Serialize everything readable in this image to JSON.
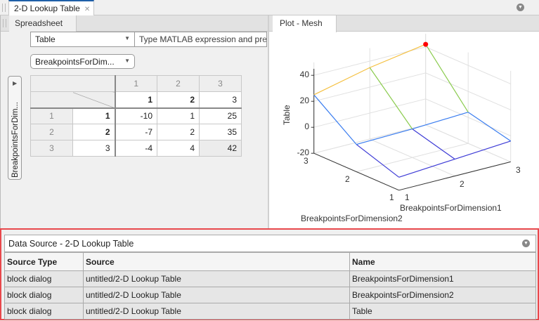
{
  "window": {
    "tab_label": "2-D Lookup Table",
    "close_icon": "close-icon"
  },
  "spreadsheet": {
    "tab_label": "Spreadsheet",
    "table_select": "Table",
    "expression_placeholder": "Type MATLAB expression and press Enter",
    "expression_visible": "Type MATLAB expression and pre",
    "breakpoint_select": "BreakpointsForDim...",
    "vertical_button": "BreakpointsForDim...",
    "col_indices": [
      "1",
      "2",
      "3"
    ],
    "col_breakpoints": [
      "1",
      "2",
      "3"
    ],
    "rows": [
      {
        "index": "1",
        "breakpoint": "1",
        "values": [
          "-10",
          "1",
          "25"
        ]
      },
      {
        "index": "2",
        "breakpoint": "2",
        "values": [
          "-7",
          "2",
          "35"
        ]
      },
      {
        "index": "3",
        "breakpoint": "3",
        "values": [
          "-4",
          "4",
          "42"
        ]
      }
    ]
  },
  "plot": {
    "tab_label": "Plot - Mesh",
    "zlabel": "Table",
    "xlabel": "BreakpointsForDimension1",
    "ylabel": "BreakpointsForDimension2",
    "zticks": [
      "40",
      "20",
      "0",
      "-20"
    ],
    "xticks": [
      "1",
      "2",
      "3"
    ],
    "yticks": [
      "1",
      "2",
      "3"
    ],
    "highlight_color": "#ff0000"
  },
  "data_source": {
    "title": "Data Source - 2-D Lookup Table",
    "columns": [
      "Source Type",
      "Source",
      "Name"
    ],
    "rows": [
      [
        "block dialog",
        "untitled/2-D Lookup Table",
        "BreakpointsForDimension1"
      ],
      [
        "block dialog",
        "untitled/2-D Lookup Table",
        "BreakpointsForDimension2"
      ],
      [
        "block dialog",
        "untitled/2-D Lookup Table",
        "Table"
      ]
    ],
    "border_color": "#e8484c"
  }
}
